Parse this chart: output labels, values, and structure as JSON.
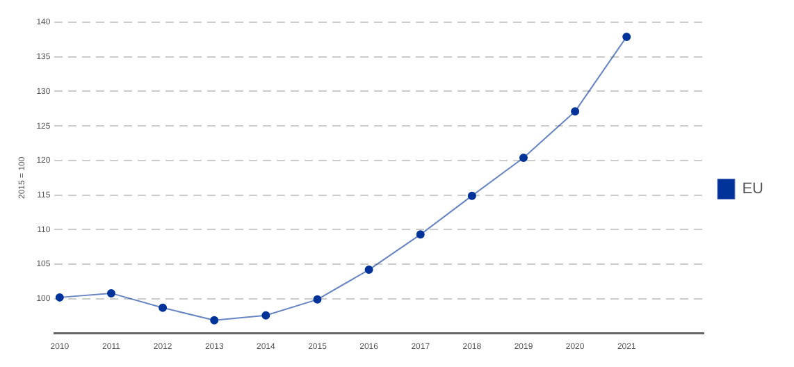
{
  "chart_data": {
    "type": "line",
    "ylabel": "2015 = 100",
    "x": [
      2010,
      2011,
      2012,
      2013,
      2014,
      2015,
      2016,
      2017,
      2018,
      2019,
      2020,
      2021
    ],
    "xlim": [
      2009.9,
      2022.5
    ],
    "xticks": [
      2010,
      2011,
      2012,
      2013,
      2014,
      2015,
      2016,
      2017,
      2018,
      2019,
      2020,
      2021
    ],
    "ylim": [
      95,
      140
    ],
    "yticks": [
      100,
      105,
      110,
      115,
      120,
      125,
      130,
      135,
      140
    ],
    "grid": "y",
    "legend": "right",
    "marker": "circle",
    "series": [
      {
        "name": "EU",
        "color": "#003399",
        "values": [
          100.2,
          100.8,
          98.7,
          96.9,
          97.6,
          99.9,
          104.2,
          109.3,
          114.9,
          120.4,
          127.1,
          137.9
        ]
      }
    ]
  }
}
